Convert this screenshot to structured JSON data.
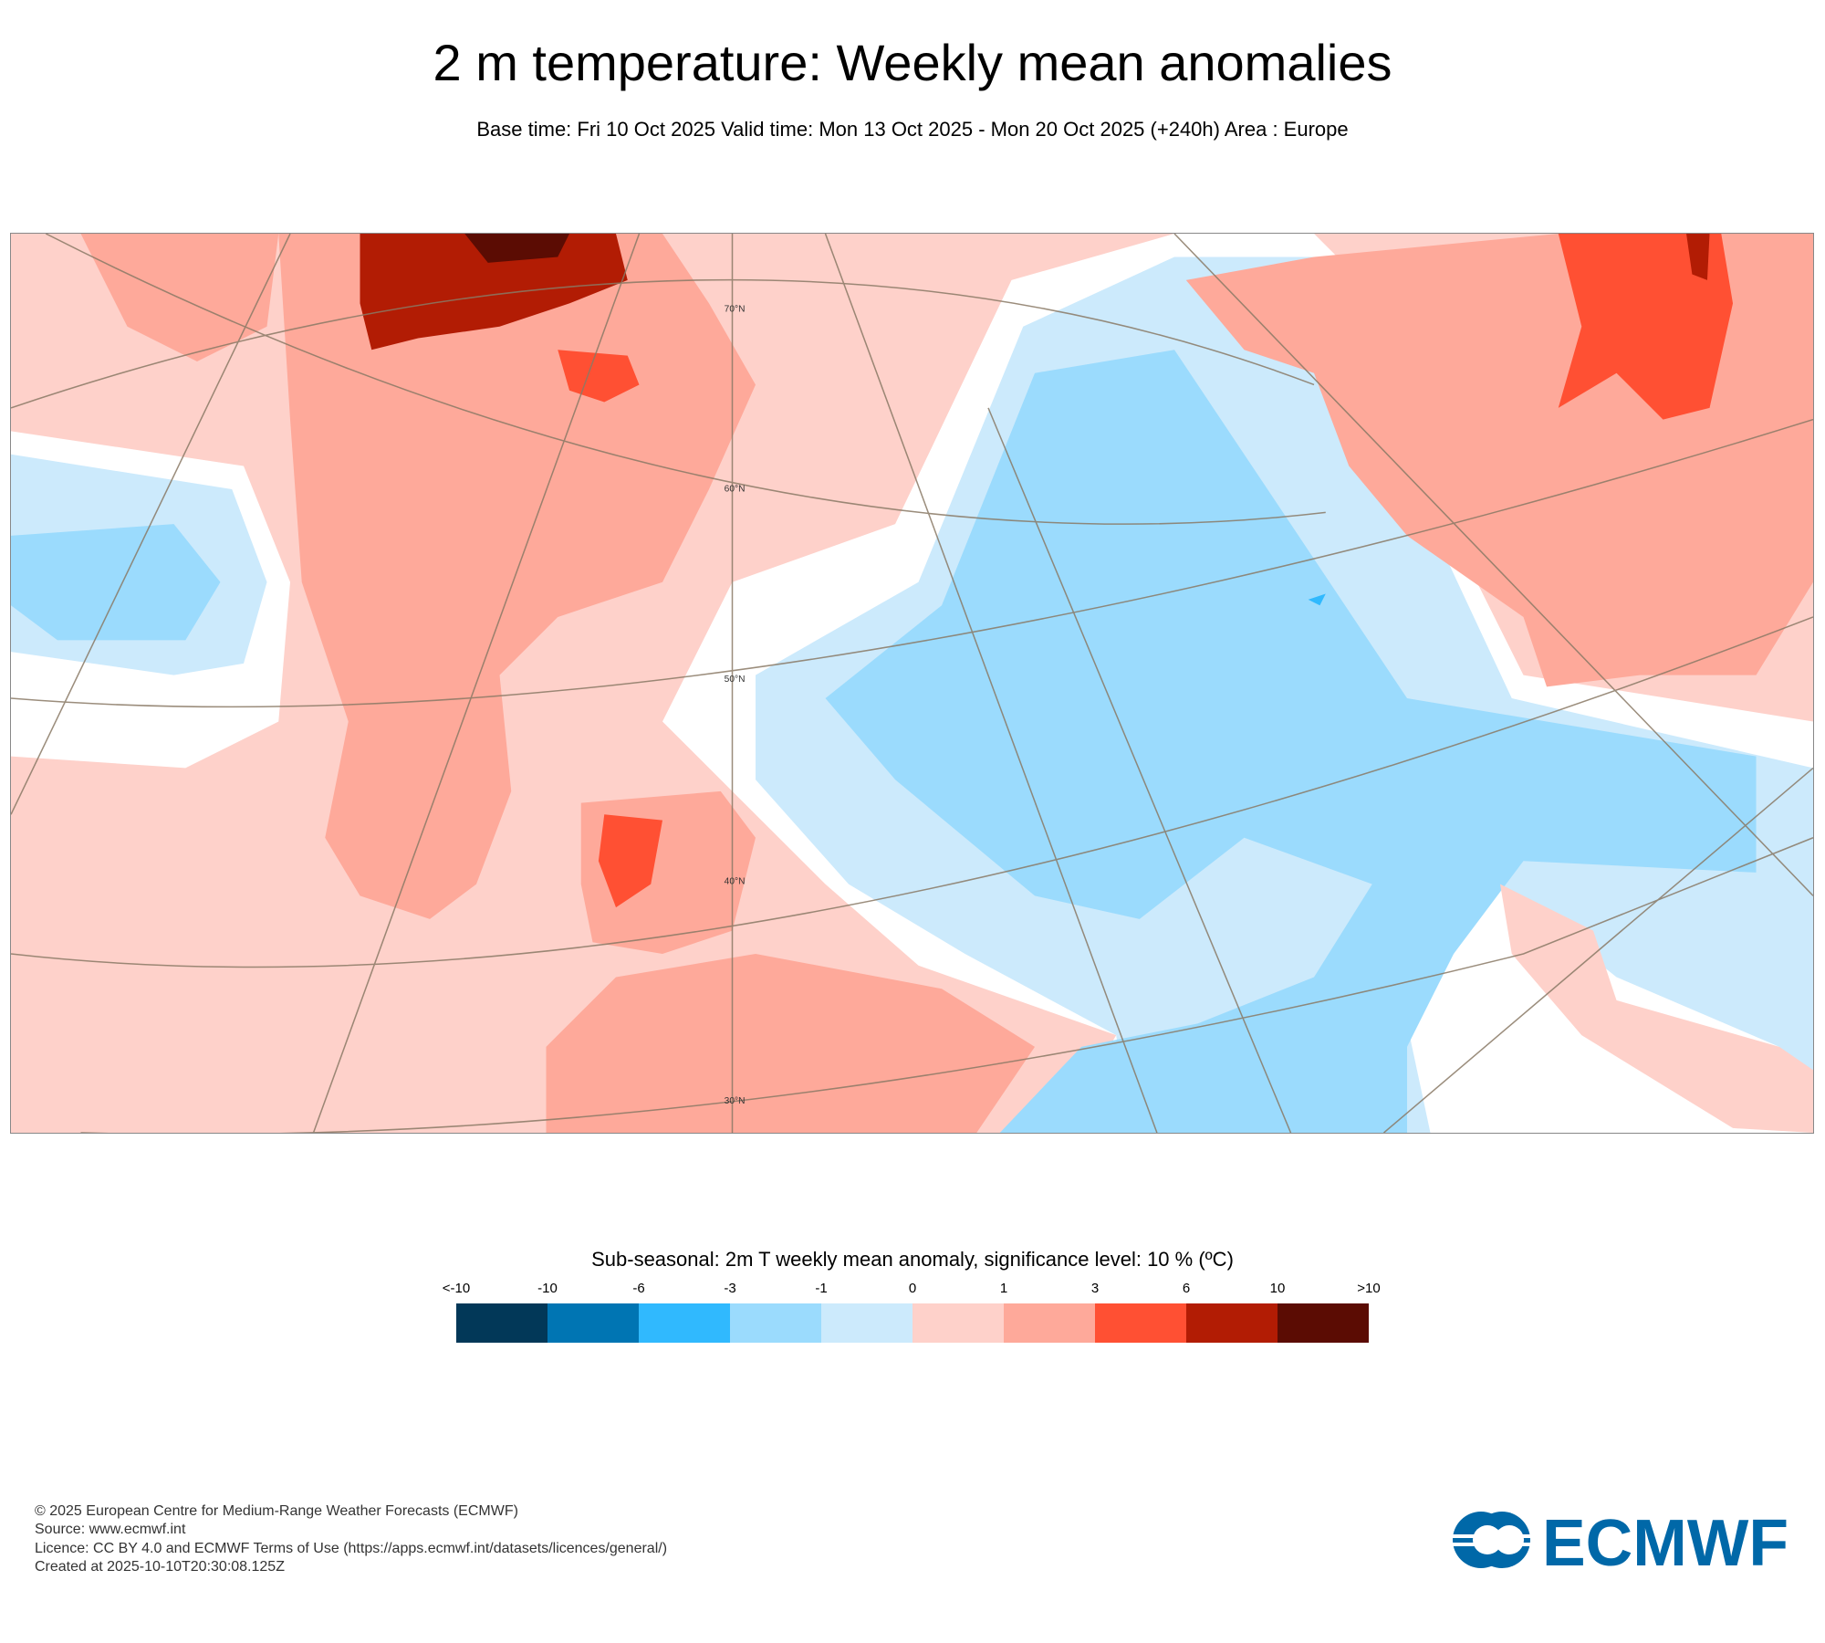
{
  "title": "2 m temperature: Weekly mean anomalies",
  "subtitle": "Base time: Fri 10 Oct 2025 Valid time: Mon 13 Oct 2025 - Mon 20 Oct 2025 (+240h) Area : Europe",
  "chart_data": {
    "type": "heatmap",
    "title": "2 m temperature: Weekly mean anomalies",
    "area": "Europe",
    "latitude_labels": [
      "70°N",
      "60°N",
      "50°N",
      "40°N",
      "30°N"
    ],
    "legend": {
      "title": "Sub-seasonal: 2m T weekly mean anomaly, significance level: 10 % (ºC)",
      "tick_labels": [
        "<-10",
        "-10",
        "-6",
        "-3",
        "-1",
        "0",
        "1",
        "3",
        "6",
        "10",
        ">10"
      ],
      "colors": [
        "#023858",
        "#0075b3",
        "#30b9fe",
        "#9bdbfd",
        "#cceafc",
        "#fed1ca",
        "#fea99a",
        "#ff5033",
        "#b21c04",
        "#5b0c03"
      ]
    }
  },
  "footer": {
    "copyright": "© 2025 European Centre for Medium-Range Weather Forecasts (ECMWF)",
    "source": "Source: www.ecmwf.int",
    "licence": "Licence: CC BY 4.0 and ECMWF Terms of Use (https://apps.ecmwf.int/datasets/licences/general/)",
    "created": "Created at 2025-10-10T20:30:08.125Z"
  },
  "logo_text": "ECMWF",
  "colors": {
    "brand": "#0068a8"
  }
}
